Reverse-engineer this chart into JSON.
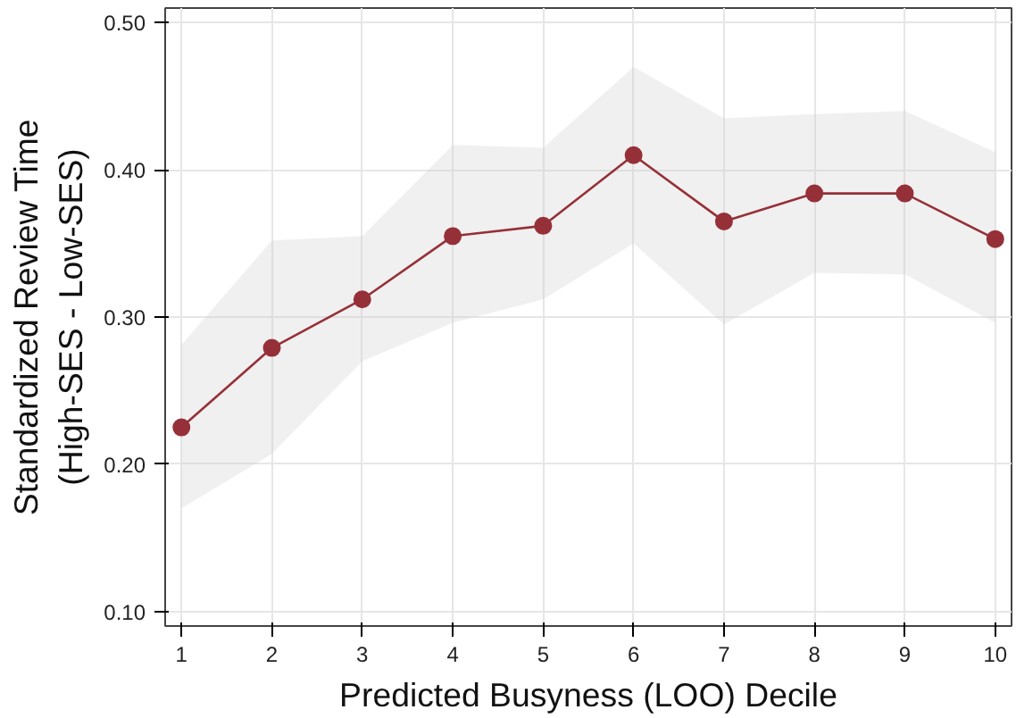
{
  "chart_data": {
    "type": "line",
    "xlabel": "Predicted Busyness (LOO) Decile",
    "ylabel": "Standardized Review Time\n(High-SES - Low-SES)",
    "x": [
      1,
      2,
      3,
      4,
      5,
      6,
      7,
      8,
      9,
      10
    ],
    "series": [
      {
        "color": "#963038",
        "values": [
          0.225,
          0.279,
          0.312,
          0.355,
          0.362,
          0.41,
          0.365,
          0.384,
          0.384,
          0.353
        ],
        "lower": [
          0.17,
          0.207,
          0.27,
          0.296,
          0.312,
          0.35,
          0.295,
          0.33,
          0.329,
          0.296
        ],
        "upper": [
          0.281,
          0.352,
          0.355,
          0.417,
          0.415,
          0.47,
          0.435,
          0.438,
          0.44,
          0.412
        ]
      }
    ],
    "xlim": [
      0.82,
      10.18
    ],
    "ylim": [
      0.09,
      0.51
    ],
    "xticks": [
      1,
      2,
      3,
      4,
      5,
      6,
      7,
      8,
      9,
      10
    ],
    "yticks": [
      {
        "value": 0.1,
        "label": "0.10"
      },
      {
        "value": 0.2,
        "label": "0.20"
      },
      {
        "value": 0.3,
        "label": "0.30"
      },
      {
        "value": 0.4,
        "label": "0.40"
      },
      {
        "value": 0.5,
        "label": "0.50"
      }
    ],
    "grid": true,
    "marker": "circle",
    "line_style": "solid"
  }
}
